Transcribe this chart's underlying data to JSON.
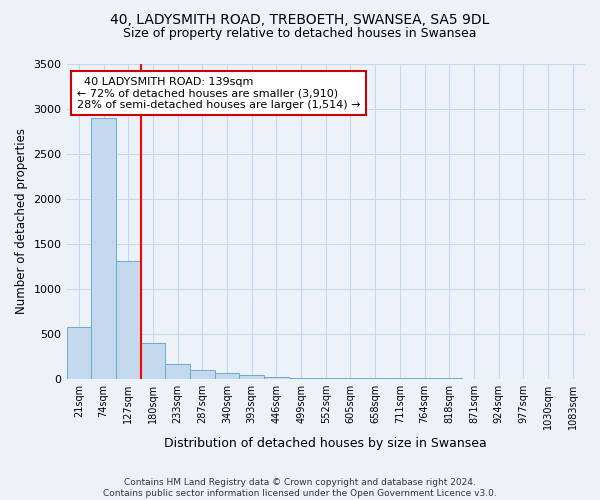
{
  "title_line1": "40, LADYSMITH ROAD, TREBOETH, SWANSEA, SA5 9DL",
  "title_line2": "Size of property relative to detached houses in Swansea",
  "xlabel": "Distribution of detached houses by size in Swansea",
  "ylabel": "Number of detached properties",
  "footer": "Contains HM Land Registry data © Crown copyright and database right 2024.\nContains public sector information licensed under the Open Government Licence v3.0.",
  "bin_labels": [
    "21sqm",
    "74sqm",
    "127sqm",
    "180sqm",
    "233sqm",
    "287sqm",
    "340sqm",
    "393sqm",
    "446sqm",
    "499sqm",
    "552sqm",
    "605sqm",
    "658sqm",
    "711sqm",
    "764sqm",
    "818sqm",
    "871sqm",
    "924sqm",
    "977sqm",
    "1030sqm",
    "1083sqm"
  ],
  "bar_values": [
    570,
    2900,
    1310,
    400,
    160,
    95,
    60,
    40,
    20,
    10,
    5,
    3,
    2,
    2,
    1,
    1,
    0,
    0,
    0,
    0,
    0
  ],
  "bar_color": "#c5d9ee",
  "bar_edgecolor": "#6aaad4",
  "grid_color": "#c8d8e8",
  "background_color": "#edf2f9",
  "red_line_x": 2.5,
  "annotation_text": "  40 LADYSMITH ROAD: 139sqm\n← 72% of detached houses are smaller (3,910)\n28% of semi-detached houses are larger (1,514) →",
  "annotation_box_color": "#ffffff",
  "annotation_border_color": "#cc0000",
  "ylim": [
    0,
    3500
  ],
  "yticks": [
    0,
    500,
    1000,
    1500,
    2000,
    2500,
    3000,
    3500
  ],
  "figsize": [
    6.0,
    5.0
  ],
  "dpi": 100
}
